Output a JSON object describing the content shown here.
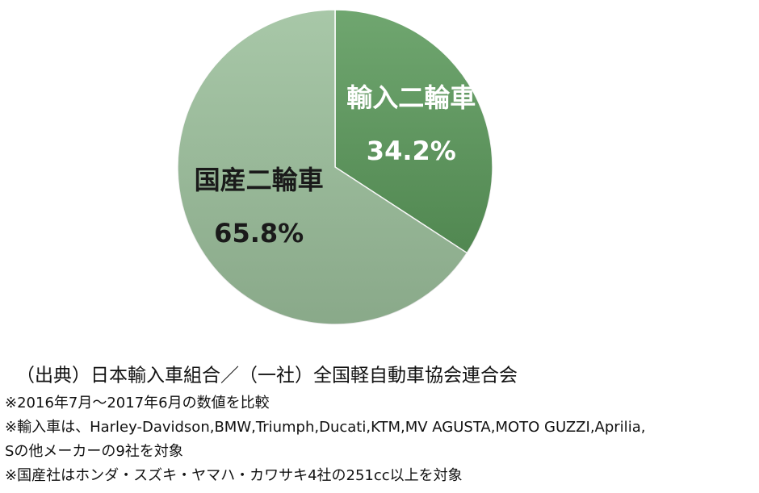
{
  "chart_data": {
    "type": "pie",
    "categories": [
      "輸入二輪車",
      "国産二輪車"
    ],
    "values": [
      34.2,
      65.8
    ],
    "value_labels": [
      "34.2%",
      "65.8%"
    ],
    "colors": [
      "#5c9a5c",
      "#9cc09c"
    ],
    "label_colors": [
      "#ffffff",
      "#1a1a1a"
    ],
    "source": "（出典）日本輸入車組合／（一社）全国軽自動車協会連合会",
    "notes": [
      "※2016年7月～2017年6月の数値を比較",
      "※輸入車は、Harley-Davidson,BMW,Triumph,Ducati,KTM,MV AGUSTA,MOTO GUZZI,Aprilia,",
      "Sの他メーカーの9社を対象",
      "※国産社はホンダ・スズキ・ヤマハ・カワサキ4社の251cc以上を対象"
    ]
  }
}
